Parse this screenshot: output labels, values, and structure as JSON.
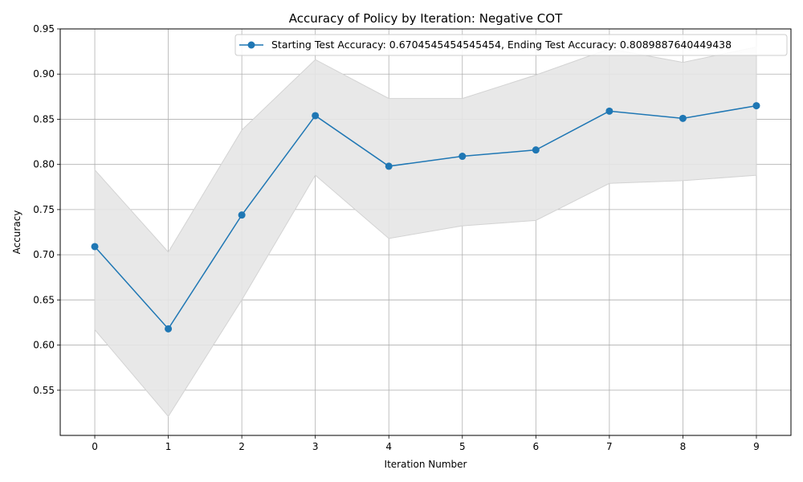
{
  "chart_data": {
    "type": "line",
    "title": "Accuracy of Policy by Iteration: Negative COT",
    "xlabel": "Iteration Number",
    "ylabel": "Accuracy",
    "x": [
      0,
      1,
      2,
      3,
      4,
      5,
      6,
      7,
      8,
      9
    ],
    "xlim": [
      -0.47,
      9.47
    ],
    "ylim": [
      0.5,
      0.95
    ],
    "y_ticks": [
      0.55,
      0.6,
      0.65,
      0.7,
      0.75,
      0.8,
      0.85,
      0.9,
      0.95
    ],
    "y_tick_labels": [
      "0.55",
      "0.60",
      "0.65",
      "0.70",
      "0.75",
      "0.80",
      "0.85",
      "0.90",
      "0.95"
    ],
    "x_tick_labels": [
      "0",
      "1",
      "2",
      "3",
      "4",
      "5",
      "6",
      "7",
      "8",
      "9"
    ],
    "grid": true,
    "legend_position": "top-right",
    "series": [
      {
        "name": "Starting Test Accuracy: 0.6704545454545454, Ending Test Accuracy: 0.8089887640449438",
        "values": [
          0.709,
          0.618,
          0.744,
          0.854,
          0.798,
          0.809,
          0.816,
          0.859,
          0.851,
          0.865
        ],
        "color": "#1f77b4",
        "marker": "circle"
      }
    ],
    "band": {
      "lower": [
        0.617,
        0.521,
        0.65,
        0.788,
        0.718,
        0.732,
        0.738,
        0.779,
        0.782,
        0.788
      ],
      "upper": [
        0.794,
        0.703,
        0.838,
        0.916,
        0.873,
        0.873,
        0.899,
        0.928,
        0.913,
        0.93
      ],
      "color": "#e5e5e5",
      "edge_color": "#d3d3d3"
    }
  }
}
